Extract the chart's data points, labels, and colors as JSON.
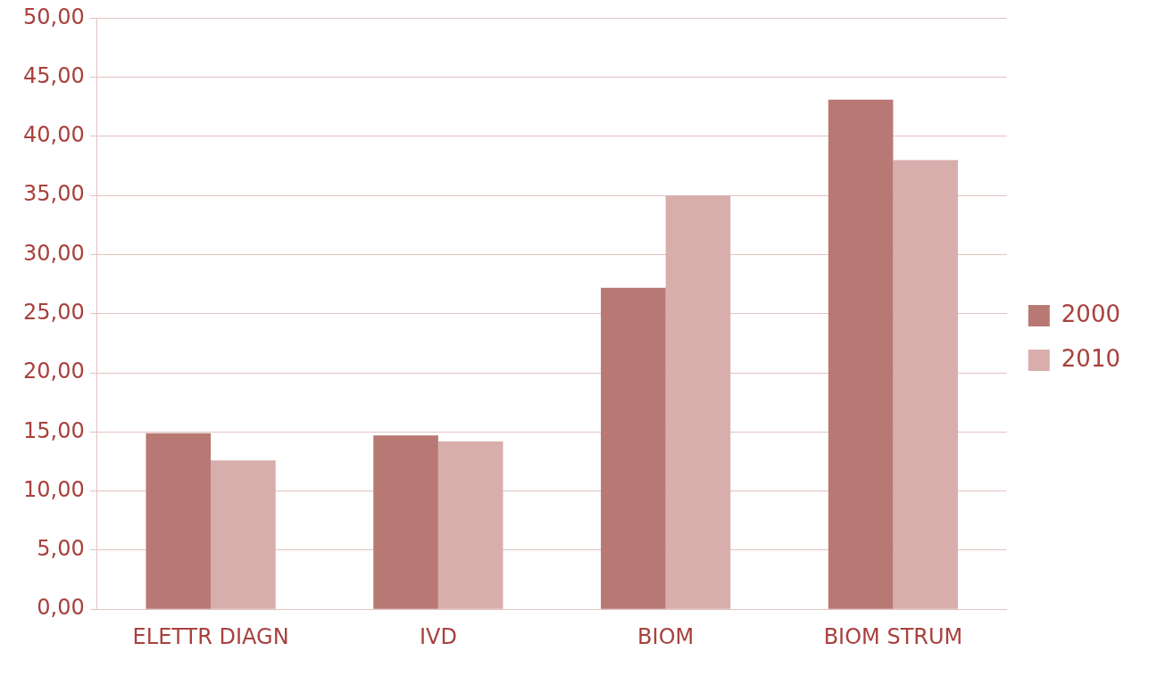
{
  "chart_data": {
    "type": "bar",
    "categories": [
      "ELETTR DIAGN",
      "IVD",
      "BIOM",
      "BIOM STRUM"
    ],
    "series": [
      {
        "name": "2000",
        "color": "#b87874",
        "values": [
          14.9,
          14.7,
          27.2,
          43.1
        ]
      },
      {
        "name": "2010",
        "color": "#d8aeac",
        "values": [
          12.6,
          14.2,
          35.0,
          38.0
        ]
      }
    ],
    "ylim": [
      0,
      50
    ],
    "yticks": [
      {
        "value": 0,
        "label": "0,00"
      },
      {
        "value": 5,
        "label": "5,00"
      },
      {
        "value": 10,
        "label": "10,00"
      },
      {
        "value": 15,
        "label": "15,00"
      },
      {
        "value": 20,
        "label": "20,00"
      },
      {
        "value": 25,
        "label": "25,00"
      },
      {
        "value": 30,
        "label": "30,00"
      },
      {
        "value": 35,
        "label": "35,00"
      },
      {
        "value": 40,
        "label": "40,00"
      },
      {
        "value": 45,
        "label": "45,00"
      },
      {
        "value": 50,
        "label": "50,00"
      }
    ],
    "grid": "y",
    "legend": "right"
  }
}
